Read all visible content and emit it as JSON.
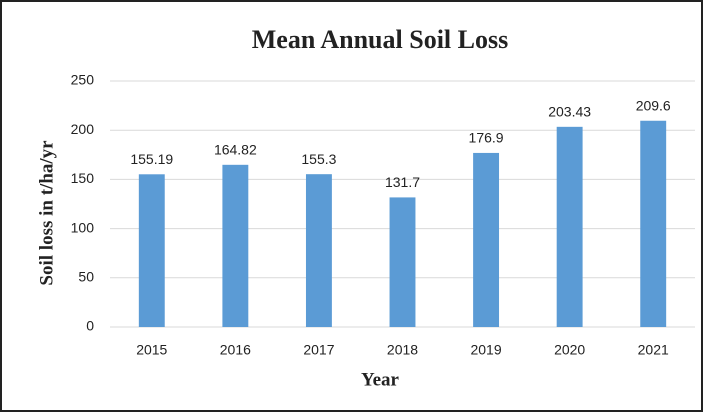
{
  "chart_data": {
    "type": "bar",
    "title": "Mean Annual Soil Loss",
    "x_label": "Year",
    "y_label": "Soil loss in t/ha/yr",
    "categories": [
      "2015",
      "2016",
      "2017",
      "2018",
      "2019",
      "2020",
      "2021"
    ],
    "values": [
      155.19,
      164.82,
      155.3,
      131.7,
      176.9,
      203.43,
      209.6
    ],
    "color": "#5b9bd5",
    "ylim": [
      0,
      250
    ],
    "yticks": [
      0,
      50,
      100,
      150,
      200,
      250
    ],
    "grid": true
  }
}
